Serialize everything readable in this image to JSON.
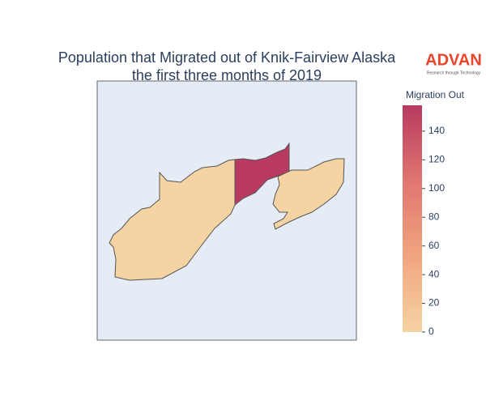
{
  "chart_data": {
    "type": "choropleth",
    "title": "Population that Migrated out of Knik-Fairview Alaska",
    "subtitle": "the first three months of 2019",
    "logo": "ADVAN",
    "logo_tagline": "Research through Technology",
    "colorbar_title": "Migration Out",
    "values": [
      0,
      158,
      0
    ],
    "colorscale": [
      "#f5d3a3",
      "#f1a57e",
      "#e07570",
      "#b83a60"
    ],
    "clim": [
      0,
      158
    ],
    "cticks": [
      0,
      20,
      40,
      60,
      80,
      100,
      120,
      140
    ]
  }
}
